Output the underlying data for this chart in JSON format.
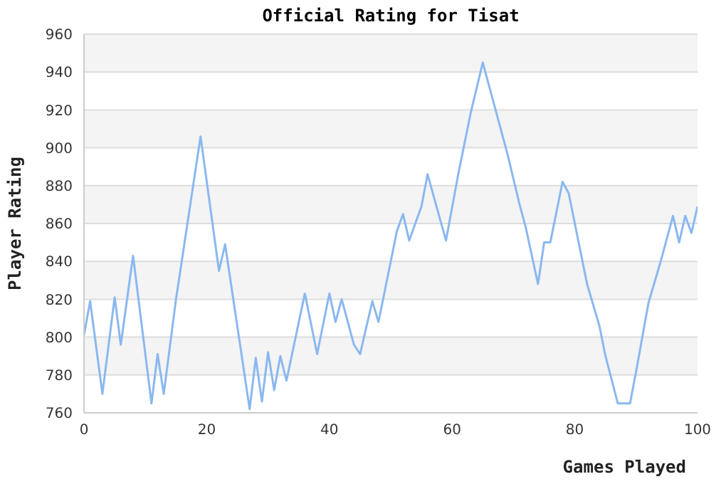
{
  "chart_data": {
    "type": "line",
    "title": "Official Rating for Tisat",
    "xlabel": "Games Played",
    "ylabel": "Player Rating",
    "series": [
      {
        "color": "#8ab8f0",
        "x": [
          0,
          1,
          3,
          5,
          6,
          8,
          11,
          12,
          13,
          15,
          19,
          22,
          23,
          27,
          28,
          29,
          30,
          31,
          32,
          33,
          36,
          38,
          40,
          41,
          42,
          44,
          45,
          47,
          48,
          51,
          52,
          53,
          55,
          56,
          59,
          61,
          63,
          65,
          69,
          71,
          72,
          74,
          75,
          76,
          78,
          79,
          82,
          84,
          85,
          87,
          89,
          90,
          92,
          94,
          96,
          97,
          98,
          99,
          100
        ],
        "values": [
          801,
          819,
          770,
          821,
          796,
          843,
          765,
          791,
          770,
          820,
          906,
          835,
          849,
          762,
          789,
          766,
          792,
          772,
          790,
          777,
          823,
          791,
          823,
          808,
          820,
          796,
          791,
          819,
          808,
          856,
          865,
          851,
          869,
          886,
          851,
          886,
          918,
          945,
          897,
          870,
          858,
          828,
          850,
          850,
          882,
          876,
          828,
          806,
          790,
          765,
          765,
          782,
          818,
          840,
          864,
          850,
          864,
          855,
          869
        ]
      }
    ],
    "xlim": [
      0,
      100
    ],
    "xticks": [
      0,
      20,
      40,
      60,
      80,
      100
    ],
    "ylim": [
      760,
      960
    ],
    "yticks": [
      760,
      780,
      800,
      820,
      840,
      860,
      880,
      900,
      920,
      940,
      960
    ],
    "grid": "y",
    "marker": "none",
    "line_style": "solid",
    "legend": false
  }
}
